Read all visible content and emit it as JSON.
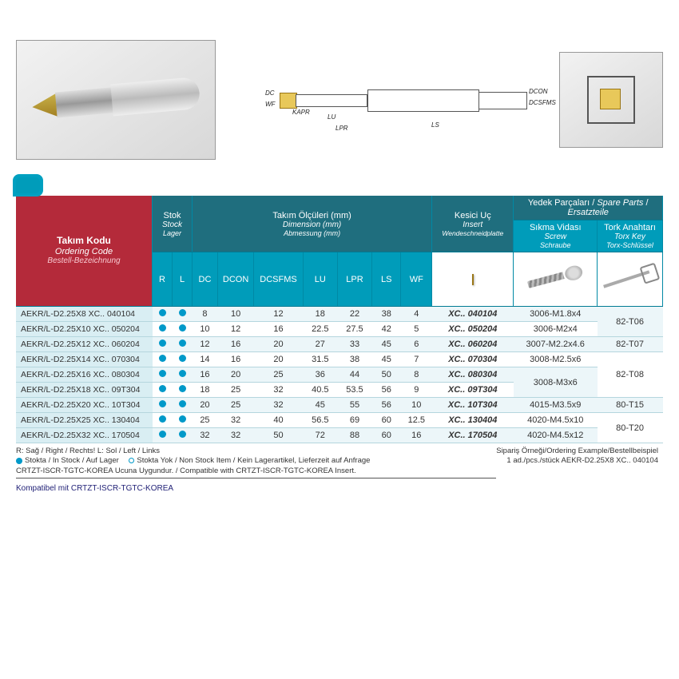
{
  "header": {
    "ordering_code": {
      "tr": "Takım Kodu",
      "en": "Ordering Code",
      "de": "Bestell-Bezeichnung"
    },
    "stock": {
      "tr": "Stok",
      "en": "Stock",
      "de": "Lager"
    },
    "dimensions": {
      "tr": "Takım Ölçüleri (mm)",
      "en": "Dimension (mm)",
      "de": "Abmessung (mm)"
    },
    "insert": {
      "tr": "Kesici Uç",
      "en": "Insert",
      "de": "Wendeschneidplatte"
    },
    "spare": {
      "tr": "Yedek Parçaları",
      "en": "Spare Parts",
      "de": "Ersatzteile"
    },
    "screw": {
      "tr": "Sıkma Vidası",
      "en": "Screw",
      "de": "Schraube"
    },
    "key": {
      "tr": "Tork Anahtarı",
      "en": "Torx Key",
      "de": "Torx-Schlüssel"
    }
  },
  "cols": {
    "r": "R",
    "l": "L",
    "dc": "DC",
    "dcon": "DCON",
    "dcsfms": "DCSFMS",
    "lu": "LU",
    "lpr": "LPR",
    "ls": "LS",
    "wf": "WF"
  },
  "tech_labels": {
    "dc": "DC",
    "wf": "WF",
    "kapr": "KAPR",
    "lu": "LU",
    "lpr": "LPR",
    "ls": "LS",
    "dcon": "DCON",
    "dcsfms": "DCSFMS"
  },
  "rows": [
    {
      "ord": "AEKR/L-D2.25X8  XC.. 040104",
      "dc": 8,
      "dcon": 10,
      "dcsfms": 12,
      "lu": 18,
      "lpr": 22,
      "ls": 38,
      "wf": 4,
      "ins": "XC.. 040104",
      "screw": "3006-M1.8x4",
      "key": "82-T06",
      "keyspan": 2
    },
    {
      "ord": "AEKR/L-D2.25X10 XC.. 050204",
      "dc": 10,
      "dcon": 12,
      "dcsfms": 16,
      "lu": 22.5,
      "lpr": 27.5,
      "ls": 42,
      "wf": 5,
      "ins": "XC.. 050204",
      "screw": "3006-M2x4"
    },
    {
      "ord": "AEKR/L-D2.25X12 XC.. 060204",
      "dc": 12,
      "dcon": 16,
      "dcsfms": 20,
      "lu": 27,
      "lpr": 33,
      "ls": 45,
      "wf": 6,
      "ins": "XC.. 060204",
      "screw": "3007-M2.2x4.6",
      "key": "82-T07",
      "keyspan": 1
    },
    {
      "ord": "AEKR/L-D2.25X14 XC.. 070304",
      "dc": 14,
      "dcon": 16,
      "dcsfms": 20,
      "lu": 31.5,
      "lpr": 38,
      "ls": 45,
      "wf": 7,
      "ins": "XC.. 070304",
      "screw": "3008-M2.5x6",
      "key": "82-T08",
      "keyspan": 3
    },
    {
      "ord": "AEKR/L-D2.25X16 XC.. 080304",
      "dc": 16,
      "dcon": 20,
      "dcsfms": 25,
      "lu": 36,
      "lpr": 44,
      "ls": 50,
      "wf": 8,
      "ins": "XC.. 080304",
      "screw": "3008-M3x6",
      "screwspan": 2
    },
    {
      "ord": "AEKR/L-D2.25X18 XC.. 09T304",
      "dc": 18,
      "dcon": 25,
      "dcsfms": 32,
      "lu": 40.5,
      "lpr": 53.5,
      "ls": 56,
      "wf": 9,
      "ins": "XC.. 09T304"
    },
    {
      "ord": "AEKR/L-D2.25X20 XC.. 10T304",
      "dc": 20,
      "dcon": 25,
      "dcsfms": 32,
      "lu": 45,
      "lpr": 55,
      "ls": 56,
      "wf": 10,
      "ins": "XC.. 10T304",
      "screw": "4015-M3.5x9",
      "key": "80-T15",
      "keyspan": 1
    },
    {
      "ord": "AEKR/L-D2.25X25 XC.. 130404",
      "dc": 25,
      "dcon": 32,
      "dcsfms": 40,
      "lu": 56.5,
      "lpr": 69,
      "ls": 60,
      "wf": 12.5,
      "ins": "XC.. 130404",
      "screw": "4020-M4.5x10",
      "key": "80-T20",
      "keyspan": 2
    },
    {
      "ord": "AEKR/L-D2.25X32 XC.. 170504",
      "dc": 32,
      "dcon": 32,
      "dcsfms": 50,
      "lu": 72,
      "lpr": 88,
      "ls": 60,
      "wf": 16,
      "ins": "XC.. 170504",
      "screw": "4020-M4.5x12"
    }
  ],
  "footer": {
    "rl": "R: Sağ / Right / Rechts!   L: Sol / Left / Links",
    "stock_in": "Stokta / In Stock / Auf Lager",
    "stock_out": "Stokta Yok / Non Stock Item / Kein Lagerartikel, Lieferzeit auf Anfrage",
    "compat": "CRTZT-ISCR-TGTC-KOREA Ucuna Uygundur. / Compatible with CRTZT-ISCR-TGTC-KOREA Insert.",
    "compat2": "Kompatibel mit CRTZT-ISCR-TGTC-KOREA",
    "order_ex_lbl": "Sipariş Örneği/Ordering Example/Bestellbeispiel",
    "order_ex_val": "1 ad./pcs./stück  AEKR-D2.25X8 XC.. 040104"
  },
  "colors": {
    "header_bg": "#009cba",
    "dark_bg": "#1f6e7e",
    "title_bg": "#b42a3a",
    "row_alt": "#ecf6f9",
    "dot": "#0099c9",
    "border": "#b5d6de"
  }
}
